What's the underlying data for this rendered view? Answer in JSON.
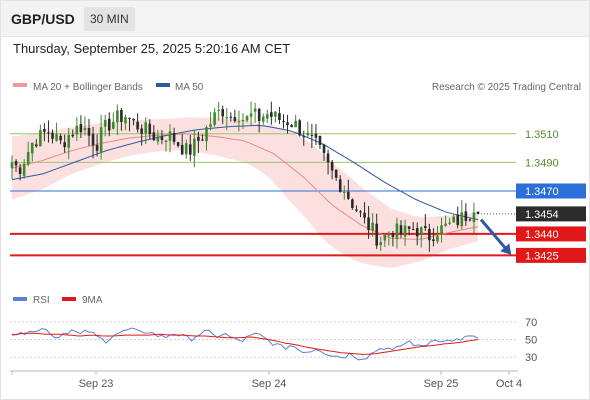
{
  "header": {
    "symbol": "GBP/USD",
    "timeframe": "30 MIN"
  },
  "datetime": "Thursday, September 25, 2025 5:20:16 AM CET",
  "legend": {
    "ma20_bb": "MA 20 + Bollinger Bands",
    "ma50": "MA 50",
    "copyright": "Research © 2025 Trading Central"
  },
  "rsi_legend": {
    "rsi": "RSI",
    "ma9": "9MA"
  },
  "colors": {
    "up": "#3d8a2e",
    "down": "#2a2a2a",
    "bollinger": "#fbd6d6",
    "ma20": "#e88a8a",
    "ma50": "#2d5aa0",
    "support": "#e01818",
    "pivot": "#2b6fd9",
    "resistance": "#9bc26b",
    "rsi": "#5b7fd6",
    "rsi_ma": "#e01818"
  },
  "chart_data": [
    {
      "type": "candlestick",
      "title": "GBP/USD 30 MIN",
      "x_labels": [
        "Sep 23",
        "Sep 24",
        "Sep 25",
        "Oct 4"
      ],
      "ylim": [
        1.3405,
        1.3535
      ],
      "series": [
        {
          "name": "MA 20 + Bollinger Bands",
          "values": [
            1.3486,
            1.3491,
            1.3498,
            1.3503,
            1.3507,
            1.3509,
            1.351,
            1.3508,
            1.3505,
            1.3496,
            1.348,
            1.346,
            1.3446,
            1.3437,
            1.3436,
            1.3441,
            1.3445
          ]
        },
        {
          "name": "MA 50",
          "values": [
            1.3478,
            1.3482,
            1.349,
            1.3498,
            1.3504,
            1.3509,
            1.3513,
            1.3515,
            1.3516,
            1.3512,
            1.3503,
            1.349,
            1.3476,
            1.3464,
            1.3455,
            1.345
          ]
        }
      ],
      "price_path": [
        1.349,
        1.3485,
        1.3495,
        1.3505,
        1.3508,
        1.3512,
        1.3508,
        1.3503,
        1.3509,
        1.3513,
        1.3516,
        1.3508,
        1.3503,
        1.3513,
        1.3518,
        1.3521,
        1.3523,
        1.3518,
        1.3515,
        1.3512,
        1.3509,
        1.3507,
        1.351,
        1.3506,
        1.3501,
        1.3497,
        1.3503,
        1.3509,
        1.3517,
        1.3524,
        1.3527,
        1.3522,
        1.3525,
        1.3519,
        1.3523,
        1.3521,
        1.3524,
        1.3522,
        1.352,
        1.3519,
        1.3517,
        1.3512,
        1.3507,
        1.3502,
        1.3494,
        1.3485,
        1.3478,
        1.3472,
        1.3463,
        1.3456,
        1.3448,
        1.3443,
        1.3435,
        1.3439,
        1.3443,
        1.344,
        1.3442,
        1.3444,
        1.3441,
        1.3438,
        1.3442,
        1.3444,
        1.3446,
        1.3449,
        1.3452,
        1.3456,
        1.3454
      ],
      "levels": [
        {
          "label": "1.3510",
          "value": 1.351,
          "kind": "resistance"
        },
        {
          "label": "1.3490",
          "value": 1.349,
          "kind": "resistance"
        },
        {
          "label": "1.3470",
          "value": 1.347,
          "kind": "pivot"
        },
        {
          "label": "1.3454",
          "value": 1.3454,
          "kind": "last"
        },
        {
          "label": "1.3440",
          "value": 1.344,
          "kind": "support"
        },
        {
          "label": "1.3425",
          "value": 1.3425,
          "kind": "support"
        }
      ]
    },
    {
      "type": "line",
      "x_labels": [
        "Sep 23",
        "Sep 24",
        "Sep 25",
        "Oct 4"
      ],
      "ylim": [
        20,
        80
      ],
      "yticks": [
        "70",
        "50",
        "30"
      ],
      "series": [
        {
          "name": "RSI",
          "values": [
            58,
            55,
            62,
            59,
            64,
            52,
            57,
            61,
            55,
            60,
            53,
            48,
            56,
            58,
            62,
            57,
            60,
            55,
            52,
            58,
            54,
            50,
            56,
            59,
            53,
            57,
            51,
            48,
            53,
            56,
            50,
            45,
            40,
            44,
            38,
            36,
            41,
            35,
            32,
            30,
            34,
            29,
            31,
            38,
            42,
            36,
            44,
            48,
            41,
            45,
            52,
            47,
            50,
            48,
            55,
            51
          ]
        },
        {
          "name": "9MA",
          "values": [
            55,
            57,
            57,
            56,
            56,
            55,
            54,
            55,
            54,
            54,
            55,
            55,
            55,
            56,
            55,
            55,
            54,
            54,
            53,
            52,
            52,
            53,
            51,
            49,
            46,
            44,
            41,
            39,
            37,
            35,
            34,
            33,
            34,
            36,
            38,
            40,
            42,
            43,
            45,
            46,
            48,
            50
          ]
        }
      ]
    }
  ]
}
